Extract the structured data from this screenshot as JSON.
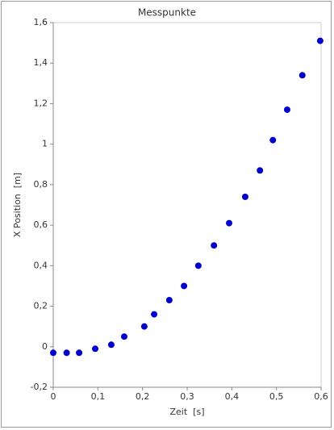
{
  "chart_data": {
    "type": "scatter",
    "title": "Messpunkte",
    "x_label": "Zeit  [s]",
    "y_label": "X Position  [m]",
    "x": [
      0,
      0.03,
      0.058,
      0.094,
      0.13,
      0.159,
      0.204,
      0.226,
      0.26,
      0.293,
      0.325,
      0.36,
      0.394,
      0.43,
      0.463,
      0.492,
      0.524,
      0.558,
      0.598
    ],
    "values": [
      -0.03,
      -0.03,
      -0.03,
      -0.01,
      0.01,
      0.05,
      0.1,
      0.16,
      0.23,
      0.3,
      0.4,
      0.5,
      0.61,
      0.74,
      0.87,
      1.02,
      1.17,
      1.34,
      1.51
    ],
    "color": "#0000cc",
    "xlim": [
      0,
      0.6
    ],
    "ylim": [
      -0.2,
      1.6
    ],
    "xticks": [
      0,
      {
        "value": 0.1,
        "label": "0,1"
      },
      {
        "value": 0.2,
        "label": "0,2"
      },
      {
        "value": 0.3,
        "label": "0,3"
      },
      {
        "value": 0.4,
        "label": "0,4"
      },
      {
        "value": 0.5,
        "label": "0,5"
      },
      {
        "value": 0.6,
        "label": "0,6"
      }
    ],
    "yticks": [
      {
        "value": -0.2,
        "label": "-0,2"
      },
      0,
      {
        "value": 0.2,
        "label": "0,2"
      },
      {
        "value": 0.4,
        "label": "0,4"
      },
      {
        "value": 0.6,
        "label": "0,6"
      },
      {
        "value": 0.8,
        "label": "0,8"
      },
      1,
      {
        "value": 1.2,
        "label": "1,2"
      },
      {
        "value": 1.4,
        "label": "1,4"
      },
      {
        "value": 1.6,
        "label": "1,6"
      }
    ],
    "grid": false
  }
}
